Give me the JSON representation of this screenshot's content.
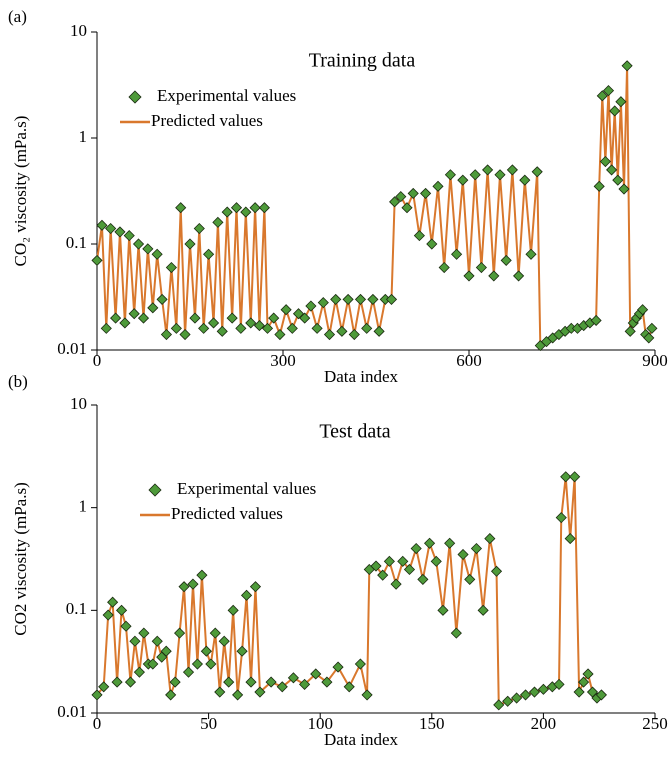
{
  "chart_data": [
    {
      "type": "line",
      "label": "(a)",
      "title": "Training data",
      "xlabel": "Data index",
      "ylabel": "CO₂ viscosity (mPa.s)",
      "log_y": true,
      "xlim": [
        0,
        900
      ],
      "ylim": [
        0.01,
        10
      ],
      "xticks": [
        0,
        300,
        600,
        900
      ],
      "yticks": [
        0.01,
        0.1,
        1,
        10
      ],
      "x": [
        0,
        8,
        15,
        22,
        30,
        37,
        45,
        52,
        60,
        67,
        75,
        82,
        90,
        97,
        105,
        112,
        120,
        128,
        135,
        142,
        150,
        158,
        165,
        172,
        180,
        188,
        195,
        202,
        210,
        218,
        225,
        232,
        240,
        248,
        255,
        262,
        270,
        275,
        285,
        295,
        305,
        315,
        325,
        335,
        345,
        355,
        365,
        375,
        385,
        395,
        405,
        415,
        425,
        435,
        445,
        455,
        465,
        475,
        480,
        490,
        500,
        510,
        520,
        530,
        540,
        550,
        560,
        570,
        580,
        590,
        600,
        610,
        620,
        630,
        640,
        650,
        660,
        670,
        680,
        690,
        700,
        710,
        715,
        725,
        735,
        745,
        755,
        765,
        775,
        785,
        795,
        805,
        810,
        815,
        820,
        825,
        830,
        835,
        840,
        845,
        850,
        855,
        860,
        865,
        870,
        875,
        880,
        885,
        890,
        895
      ],
      "series": [
        {
          "name": "Experimental values",
          "color": "#4e9a3a",
          "marker": "diamond",
          "values": [
            0.07,
            0.15,
            0.016,
            0.14,
            0.02,
            0.13,
            0.018,
            0.12,
            0.022,
            0.1,
            0.02,
            0.09,
            0.025,
            0.08,
            0.03,
            0.014,
            0.06,
            0.016,
            0.22,
            0.014,
            0.1,
            0.02,
            0.14,
            0.016,
            0.08,
            0.018,
            0.16,
            0.015,
            0.2,
            0.02,
            0.22,
            0.016,
            0.2,
            0.018,
            0.22,
            0.017,
            0.22,
            0.016,
            0.02,
            0.014,
            0.024,
            0.016,
            0.022,
            0.02,
            0.026,
            0.016,
            0.028,
            0.014,
            0.03,
            0.015,
            0.03,
            0.014,
            0.03,
            0.016,
            0.03,
            0.015,
            0.03,
            0.03,
            0.25,
            0.28,
            0.22,
            0.3,
            0.12,
            0.3,
            0.1,
            0.35,
            0.06,
            0.45,
            0.08,
            0.4,
            0.05,
            0.45,
            0.06,
            0.5,
            0.05,
            0.45,
            0.07,
            0.5,
            0.05,
            0.4,
            0.08,
            0.48,
            0.011,
            0.012,
            0.013,
            0.014,
            0.015,
            0.016,
            0.016,
            0.017,
            0.018,
            0.019,
            0.35,
            2.5,
            0.6,
            2.8,
            0.5,
            1.8,
            0.4,
            2.2,
            0.33,
            4.8,
            0.015,
            0.018,
            0.02,
            0.022,
            0.024,
            0.014,
            0.013,
            0.016
          ]
        },
        {
          "name": "Predicted values",
          "color": "#d9782d",
          "values": [
            0.07,
            0.15,
            0.016,
            0.14,
            0.02,
            0.13,
            0.018,
            0.12,
            0.022,
            0.1,
            0.02,
            0.09,
            0.025,
            0.08,
            0.03,
            0.014,
            0.06,
            0.016,
            0.22,
            0.014,
            0.1,
            0.02,
            0.14,
            0.016,
            0.08,
            0.018,
            0.16,
            0.015,
            0.2,
            0.02,
            0.22,
            0.016,
            0.2,
            0.018,
            0.22,
            0.017,
            0.22,
            0.016,
            0.02,
            0.014,
            0.024,
            0.016,
            0.022,
            0.02,
            0.026,
            0.016,
            0.028,
            0.014,
            0.03,
            0.015,
            0.03,
            0.014,
            0.03,
            0.016,
            0.03,
            0.015,
            0.03,
            0.03,
            0.25,
            0.28,
            0.22,
            0.3,
            0.12,
            0.3,
            0.1,
            0.35,
            0.06,
            0.45,
            0.08,
            0.4,
            0.05,
            0.45,
            0.06,
            0.5,
            0.05,
            0.45,
            0.07,
            0.5,
            0.05,
            0.4,
            0.08,
            0.48,
            0.011,
            0.012,
            0.013,
            0.014,
            0.015,
            0.016,
            0.016,
            0.017,
            0.018,
            0.019,
            0.35,
            2.5,
            0.6,
            2.8,
            0.5,
            1.8,
            0.4,
            2.2,
            0.33,
            4.8,
            0.015,
            0.018,
            0.02,
            0.022,
            0.024,
            0.014,
            0.013,
            0.016
          ]
        }
      ]
    },
    {
      "type": "line",
      "label": "(b)",
      "title": "Test data",
      "xlabel": "Data index",
      "ylabel": "CO2 viscosity (mPa.s)",
      "log_y": true,
      "xlim": [
        0,
        250
      ],
      "ylim": [
        0.01,
        10
      ],
      "xticks": [
        0,
        50,
        100,
        150,
        200,
        250
      ],
      "yticks": [
        0.01,
        0.1,
        1,
        10
      ],
      "x": [
        0,
        3,
        5,
        7,
        9,
        11,
        13,
        15,
        17,
        19,
        21,
        23,
        25,
        27,
        29,
        31,
        33,
        35,
        37,
        39,
        41,
        43,
        45,
        47,
        49,
        51,
        53,
        55,
        57,
        59,
        61,
        63,
        65,
        67,
        69,
        71,
        73,
        78,
        83,
        88,
        93,
        98,
        103,
        108,
        113,
        118,
        121,
        122,
        125,
        128,
        131,
        134,
        137,
        140,
        143,
        146,
        149,
        152,
        155,
        158,
        161,
        164,
        167,
        170,
        173,
        176,
        179,
        180,
        184,
        188,
        192,
        196,
        200,
        204,
        207,
        208,
        210,
        212,
        214,
        216,
        218,
        220,
        222,
        224,
        226
      ],
      "series": [
        {
          "name": "Experimental values",
          "color": "#4e9a3a",
          "marker": "diamond",
          "values": [
            0.015,
            0.018,
            0.09,
            0.12,
            0.02,
            0.1,
            0.07,
            0.02,
            0.05,
            0.025,
            0.06,
            0.03,
            0.03,
            0.05,
            0.035,
            0.04,
            0.015,
            0.02,
            0.06,
            0.17,
            0.025,
            0.18,
            0.03,
            0.22,
            0.04,
            0.03,
            0.06,
            0.016,
            0.05,
            0.02,
            0.1,
            0.015,
            0.04,
            0.14,
            0.02,
            0.17,
            0.016,
            0.02,
            0.018,
            0.022,
            0.019,
            0.024,
            0.02,
            0.028,
            0.018,
            0.03,
            0.015,
            0.25,
            0.27,
            0.22,
            0.3,
            0.18,
            0.3,
            0.25,
            0.4,
            0.2,
            0.45,
            0.3,
            0.1,
            0.45,
            0.06,
            0.35,
            0.2,
            0.4,
            0.1,
            0.5,
            0.24,
            0.012,
            0.013,
            0.014,
            0.015,
            0.016,
            0.017,
            0.018,
            0.019,
            0.8,
            2.0,
            0.5,
            2.0,
            0.016,
            0.02,
            0.024,
            0.016,
            0.014,
            0.015
          ]
        },
        {
          "name": "Predicted values",
          "color": "#d9782d",
          "values": [
            0.015,
            0.018,
            0.09,
            0.12,
            0.02,
            0.1,
            0.07,
            0.02,
            0.05,
            0.025,
            0.06,
            0.03,
            0.03,
            0.05,
            0.035,
            0.04,
            0.015,
            0.02,
            0.06,
            0.17,
            0.025,
            0.18,
            0.03,
            0.22,
            0.04,
            0.03,
            0.06,
            0.016,
            0.05,
            0.02,
            0.1,
            0.015,
            0.04,
            0.14,
            0.02,
            0.17,
            0.016,
            0.02,
            0.018,
            0.022,
            0.019,
            0.024,
            0.02,
            0.028,
            0.018,
            0.03,
            0.015,
            0.25,
            0.27,
            0.22,
            0.3,
            0.18,
            0.3,
            0.25,
            0.4,
            0.2,
            0.45,
            0.3,
            0.1,
            0.45,
            0.06,
            0.35,
            0.2,
            0.4,
            0.1,
            0.5,
            0.24,
            0.012,
            0.013,
            0.014,
            0.015,
            0.016,
            0.017,
            0.018,
            0.019,
            0.8,
            2.0,
            0.5,
            2.0,
            0.016,
            0.02,
            0.024,
            0.016,
            0.014,
            0.015
          ]
        }
      ]
    }
  ]
}
